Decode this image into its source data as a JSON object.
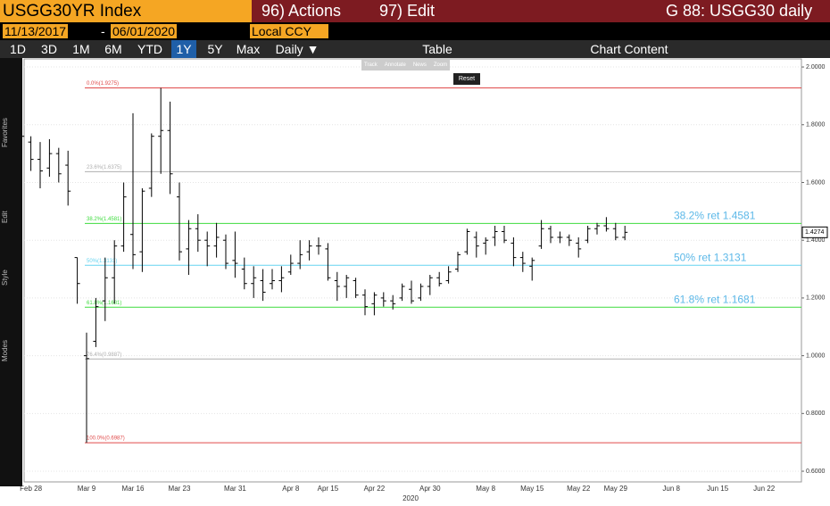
{
  "ui": {
    "header": {
      "security": "USGG30YR Index",
      "actions": "96) Actions",
      "edit": "97) Edit",
      "page": "G 88: USGG30 daily"
    },
    "range": {
      "start": "11/13/2017",
      "separator": "-",
      "end": "06/01/2020",
      "currency": "Local CCY"
    },
    "periods": [
      "1D",
      "3D",
      "1M",
      "6M",
      "YTD",
      "1Y",
      "5Y",
      "Max"
    ],
    "selected": "1Y",
    "frequency": "Daily ▼",
    "table": "Table",
    "chart_content": "Chart Content",
    "tools": [
      "Track",
      "Annotate",
      "News",
      "Zoom"
    ],
    "reset": "Reset",
    "side_labels": [
      "Favorites",
      "Edit",
      "Style",
      "Modes"
    ]
  },
  "chart_data": {
    "type": "ohlc",
    "x_title": "2020",
    "categories": [
      null,
      "Feb 28",
      null,
      null,
      null,
      null,
      null,
      "Mar 9",
      null,
      null,
      null,
      null,
      "Mar 16",
      null,
      null,
      null,
      null,
      "Mar 23",
      null,
      null,
      null,
      null,
      null,
      "Mar 31",
      null,
      null,
      null,
      null,
      null,
      "Apr 8",
      null,
      null,
      null,
      "Apr 15",
      null,
      null,
      null,
      null,
      "Apr 22",
      null,
      null,
      null,
      null,
      null,
      "Apr 30",
      null,
      null,
      null,
      null,
      null,
      "May 8",
      null,
      null,
      null,
      null,
      "May 15",
      null,
      null,
      null,
      null,
      "May 22",
      null,
      null,
      null,
      "May 29",
      null,
      null,
      null,
      null,
      null,
      "Jun 8",
      null,
      null,
      null,
      null,
      "Jun 15",
      null,
      null,
      null,
      null,
      "Jun 22",
      null,
      null,
      null,
      null
    ],
    "open": [
      1.77,
      1.74,
      1.68,
      1.65,
      1.7,
      1.66,
      1.34,
      1.0,
      1.05,
      1.19,
      1.27,
      1.38,
      1.42,
      1.36,
      1.58,
      1.76,
      1.78,
      1.55,
      1.37,
      1.44,
      1.4,
      1.38,
      1.4,
      1.33,
      1.3,
      1.25,
      1.26,
      1.25,
      1.26,
      1.29,
      1.32,
      1.36,
      1.38,
      1.37,
      1.26,
      1.24,
      1.26,
      1.21,
      1.18,
      1.2,
      1.19,
      1.2,
      1.23,
      1.2,
      1.24,
      1.27,
      1.26,
      1.3,
      1.36,
      1.41,
      1.39,
      1.41,
      1.43,
      1.39,
      1.34,
      1.31,
      1.38,
      1.44,
      1.41,
      1.41,
      1.39,
      1.4,
      1.44,
      1.45,
      1.44,
      1.41,
      null,
      null,
      null,
      null,
      null,
      null,
      null,
      null,
      null,
      null,
      null,
      null,
      null,
      null,
      null,
      null,
      null,
      null,
      null
    ],
    "high": [
      1.79,
      1.76,
      1.74,
      1.75,
      1.72,
      1.71,
      1.34,
      1.08,
      1.2,
      1.34,
      1.4,
      1.6,
      1.84,
      1.58,
      1.77,
      1.9275,
      1.88,
      1.6,
      1.47,
      1.49,
      1.43,
      1.46,
      1.42,
      1.43,
      1.34,
      1.31,
      1.3,
      1.3,
      1.31,
      1.35,
      1.4,
      1.4,
      1.41,
      1.39,
      1.29,
      1.28,
      1.27,
      1.23,
      1.22,
      1.22,
      1.21,
      1.25,
      1.26,
      1.25,
      1.28,
      1.29,
      1.31,
      1.36,
      1.44,
      1.43,
      1.41,
      1.45,
      1.45,
      1.41,
      1.36,
      1.34,
      1.47,
      1.45,
      1.43,
      1.42,
      1.41,
      1.45,
      1.46,
      1.48,
      1.46,
      1.45,
      null,
      null,
      null,
      null,
      null,
      null,
      null,
      null,
      null,
      null,
      null,
      null,
      null,
      null,
      null,
      null,
      null,
      null,
      null
    ],
    "low": [
      1.73,
      1.64,
      1.58,
      1.62,
      1.6,
      1.52,
      1.18,
      0.6987,
      1.03,
      1.12,
      1.18,
      1.36,
      1.3,
      1.29,
      1.55,
      1.63,
      1.56,
      1.33,
      1.28,
      1.36,
      1.31,
      1.34,
      1.3,
      1.27,
      1.23,
      1.2,
      1.19,
      1.23,
      1.22,
      1.28,
      1.3,
      1.33,
      1.35,
      1.26,
      1.19,
      1.2,
      1.2,
      1.14,
      1.14,
      1.17,
      1.16,
      1.19,
      1.18,
      1.19,
      1.21,
      1.24,
      1.25,
      1.29,
      1.35,
      1.34,
      1.35,
      1.38,
      1.39,
      1.31,
      1.29,
      1.26,
      1.37,
      1.39,
      1.39,
      1.38,
      1.34,
      1.39,
      1.42,
      1.43,
      1.4,
      1.4,
      null,
      null,
      null,
      null,
      null,
      null,
      null,
      null,
      null,
      null,
      null,
      null,
      null,
      null,
      null,
      null,
      null,
      null,
      null
    ],
    "close": [
      1.76,
      1.68,
      1.64,
      1.7,
      1.63,
      1.57,
      1.25,
      0.99,
      1.17,
      1.27,
      1.38,
      1.55,
      1.35,
      1.57,
      1.76,
      1.78,
      1.63,
      1.36,
      1.44,
      1.4,
      1.38,
      1.41,
      1.32,
      1.32,
      1.25,
      1.27,
      1.22,
      1.26,
      1.27,
      1.32,
      1.35,
      1.38,
      1.38,
      1.27,
      1.24,
      1.27,
      1.21,
      1.17,
      1.21,
      1.19,
      1.18,
      1.24,
      1.19,
      1.24,
      1.27,
      1.25,
      1.29,
      1.35,
      1.43,
      1.38,
      1.4,
      1.43,
      1.4,
      1.34,
      1.32,
      1.33,
      1.44,
      1.41,
      1.41,
      1.4,
      1.37,
      1.44,
      1.45,
      1.44,
      1.41,
      1.4274,
      null,
      null,
      null,
      null,
      null,
      null,
      null,
      null,
      null,
      null,
      null,
      null,
      null,
      null,
      null,
      null,
      null,
      null,
      null
    ],
    "color": "#000000",
    "levels": [
      {
        "label": "0.0%(1.9275)",
        "value": 1.9275,
        "color": "#e04b4b"
      },
      {
        "label": "23.6%(1.6375)",
        "value": 1.6375,
        "color": "#b0b0b0"
      },
      {
        "label": "38.2%(1.4581)",
        "value": 1.4581,
        "color": "#3fdc3f",
        "note": "38.2% ret 1.4581"
      },
      {
        "label": "50%(1.3131)",
        "value": 1.3131,
        "color": "#66d4f0",
        "note": "50% ret 1.3131"
      },
      {
        "label": "61.8%(1.1681)",
        "value": 1.1681,
        "color": "#3fdc3f",
        "note": "61.8% ret 1.1681"
      },
      {
        "label": "76.4%(0.9887)",
        "value": 0.9887,
        "color": "#b0b0b0"
      },
      {
        "label": "100.0%(0.6987)",
        "value": 0.6987,
        "color": "#e04b4b"
      }
    ],
    "note_color": "#5cb8e8",
    "ylim": [
      0.563,
      2.028
    ],
    "yticks": [
      {
        "value": 2,
        "label": "2.0000"
      },
      {
        "value": 1.8,
        "label": "1.8000"
      },
      {
        "value": 1.6,
        "label": "1.6000"
      },
      {
        "value": 1.4,
        "label": "1.4000"
      },
      {
        "value": 1.2,
        "label": "1.2000"
      },
      {
        "value": 1,
        "label": "1.0000"
      },
      {
        "value": 0.8,
        "label": "0.8000"
      },
      {
        "value": 0.6,
        "label": "0.6000"
      }
    ],
    "grid": true
  }
}
